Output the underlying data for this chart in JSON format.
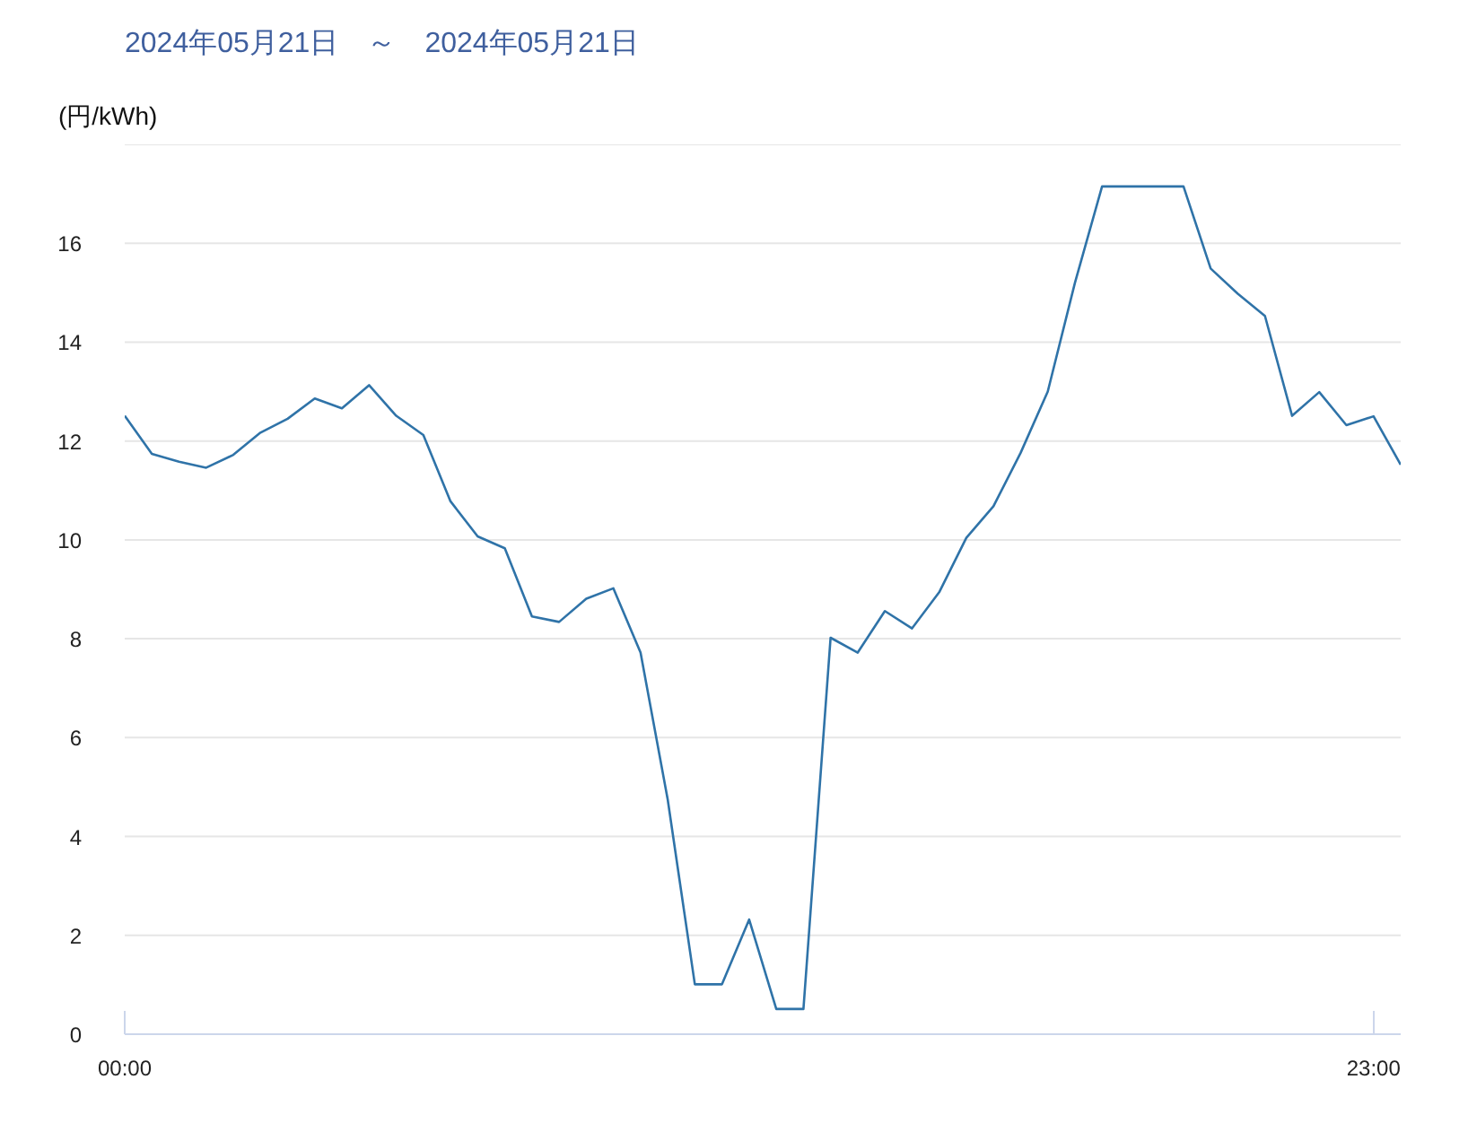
{
  "chart_data": {
    "type": "line",
    "title": "2024年05月21日　～　2024年05月21日",
    "ylabel": "(円/kWh)",
    "x": [
      0,
      0.5,
      1,
      1.5,
      2,
      2.5,
      3,
      3.5,
      4,
      4.5,
      5,
      5.5,
      6,
      6.5,
      7,
      7.5,
      8,
      8.5,
      9,
      9.5,
      10,
      10.5,
      11,
      11.5,
      12,
      12.5,
      13,
      13.5,
      14,
      14.5,
      15,
      15.5,
      16,
      16.5,
      17,
      17.5,
      18,
      18.5,
      19,
      19.5,
      20,
      20.5,
      21,
      21.5,
      22,
      22.5,
      23,
      23.5
    ],
    "xlim": [
      0,
      23.5
    ],
    "xticks": [
      {
        "value": 0,
        "label": "00:00"
      },
      {
        "value": 23,
        "label": "23:00"
      }
    ],
    "ylim": [
      0,
      18
    ],
    "yticks": [
      0,
      2,
      4,
      6,
      8,
      10,
      12,
      14,
      16,
      {
        "value": 18,
        "label": null
      }
    ],
    "grid": "y",
    "marker": "none",
    "line_style": "solid",
    "series": [
      {
        "color": "#2f73a8",
        "values": [
          12.51,
          11.74,
          11.58,
          11.46,
          11.72,
          12.17,
          12.45,
          12.86,
          12.66,
          13.13,
          12.51,
          12.12,
          10.78,
          10.07,
          9.83,
          8.45,
          8.34,
          8.81,
          9.02,
          7.72,
          4.75,
          1.01,
          1.01,
          2.32,
          0.51,
          0.51,
          8.02,
          7.72,
          8.56,
          8.21,
          8.94,
          10.04,
          10.68,
          11.76,
          13.0,
          15.2,
          17.15,
          17.15,
          17.15,
          17.15,
          15.49,
          14.98,
          14.53,
          12.51,
          12.99,
          12.32,
          12.5,
          11.52
        ]
      }
    ]
  }
}
